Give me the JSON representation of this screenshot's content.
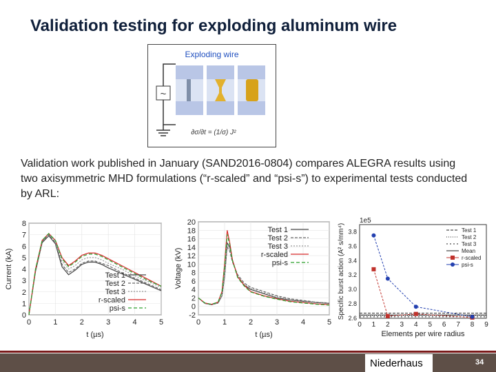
{
  "slide": {
    "title": "Validation testing for exploding aluminum wire",
    "schematic_label": "Exploding wire",
    "schematic_symbol": "~",
    "equation": "∂σ/∂t = (1/σ) J²",
    "body": "Validation work published in January (SAND2016-0804) compares ALEGRA results using two axisymmetric MHD formulations (“r-scaled” and “psi-s”) to experimental tests conducted by ARL:",
    "author": "Niederhaus",
    "page_number": "34"
  },
  "colors": {
    "test1": "#444444",
    "test2": "#666666",
    "test3": "#999999",
    "rscaled": "#d62728",
    "psis": "#2ca02c",
    "mean": "#222222",
    "rscaled_marker": "#c0312b",
    "psis_marker": "#2340b0",
    "footer": "#5e4f47",
    "title": "#0f1f3a",
    "schematic_text": "#1f4fbf"
  },
  "chart_data": [
    {
      "type": "line",
      "xlabel": "t (µs)",
      "ylabel": "Current (kA)",
      "xlim": [
        0,
        5
      ],
      "ylim": [
        0,
        8
      ],
      "xticks": [
        0,
        1,
        2,
        3,
        4,
        5
      ],
      "yticks": [
        0,
        1,
        2,
        3,
        4,
        5,
        6,
        7,
        8
      ],
      "grid": true,
      "legend_position": "bottom-right",
      "x": [
        0,
        0.25,
        0.5,
        0.75,
        1.0,
        1.25,
        1.5,
        1.75,
        2.0,
        2.25,
        2.5,
        2.75,
        3.0,
        3.5,
        4.0,
        4.5,
        5.0
      ],
      "series": [
        {
          "name": "Test 1",
          "values": [
            0,
            3.8,
            6.3,
            6.9,
            6.2,
            4.2,
            3.5,
            3.9,
            4.4,
            4.6,
            4.6,
            4.4,
            4.1,
            3.6,
            3.1,
            2.6,
            2.1
          ]
        },
        {
          "name": "Test 2",
          "values": [
            0,
            3.9,
            6.4,
            7.0,
            6.3,
            4.4,
            3.7,
            4.0,
            4.5,
            4.7,
            4.7,
            4.5,
            4.3,
            3.7,
            3.2,
            2.7,
            2.2
          ]
        },
        {
          "name": "Test 3",
          "values": [
            0,
            3.9,
            6.4,
            7.0,
            6.4,
            4.7,
            4.0,
            4.3,
            4.8,
            5.0,
            5.0,
            4.8,
            4.5,
            4.0,
            3.4,
            2.9,
            2.4
          ]
        },
        {
          "name": "r-scaled",
          "values": [
            0,
            4.0,
            6.5,
            7.1,
            6.5,
            5.0,
            4.3,
            4.7,
            5.2,
            5.4,
            5.4,
            5.2,
            4.9,
            4.3,
            3.7,
            3.1,
            2.5
          ]
        },
        {
          "name": "psi-s",
          "values": [
            0,
            4.0,
            6.5,
            7.1,
            6.5,
            4.9,
            4.2,
            4.6,
            5.1,
            5.3,
            5.3,
            5.1,
            4.8,
            4.2,
            3.6,
            3.0,
            2.5
          ]
        }
      ]
    },
    {
      "type": "line",
      "xlabel": "t (µs)",
      "ylabel": "Voltage (kV)",
      "xlim": [
        0,
        5
      ],
      "ylim": [
        -2,
        20
      ],
      "xticks": [
        0,
        1,
        2,
        3,
        4,
        5
      ],
      "yticks": [
        -2,
        0,
        2,
        4,
        6,
        8,
        10,
        12,
        14,
        16,
        18,
        20
      ],
      "grid": true,
      "legend_position": "top-right",
      "x": [
        0,
        0.25,
        0.5,
        0.75,
        0.9,
        1.0,
        1.1,
        1.2,
        1.3,
        1.5,
        1.75,
        2.0,
        2.5,
        3.0,
        3.5,
        4.0,
        4.5,
        5.0
      ],
      "series": [
        {
          "name": "Test 1",
          "values": [
            2,
            0.7,
            0.4,
            0.8,
            2.5,
            7,
            15,
            14,
            11,
            7,
            5,
            4,
            3,
            2,
            1.5,
            1.2,
            0.9,
            0.7
          ]
        },
        {
          "name": "Test 2",
          "values": [
            2,
            0.7,
            0.4,
            0.8,
            2.5,
            7,
            14,
            13,
            10.5,
            7.5,
            5.5,
            4.5,
            3.5,
            2.5,
            1.8,
            1.4,
            1.0,
            0.8
          ]
        },
        {
          "name": "Test 3",
          "values": [
            2,
            0.7,
            0.4,
            0.8,
            2.6,
            7.5,
            14.5,
            13.5,
            10.8,
            7.2,
            5.2,
            4.2,
            3.2,
            2.3,
            1.6,
            1.3,
            1.0,
            0.8
          ]
        },
        {
          "name": "r-scaled",
          "values": [
            2,
            0.8,
            0.5,
            1.0,
            3.5,
            10,
            18,
            15,
            11,
            7,
            5,
            3.5,
            2.5,
            1.8,
            1.2,
            0.9,
            0.6,
            0.4
          ]
        },
        {
          "name": "psi-s",
          "values": [
            2,
            0.8,
            0.5,
            1.0,
            3.4,
            9.5,
            17,
            14.5,
            10.8,
            6.8,
            4.8,
            3.4,
            2.4,
            1.7,
            1.1,
            0.8,
            0.5,
            0.3
          ]
        }
      ]
    },
    {
      "type": "line",
      "xlabel": "Elements per wire radius",
      "ylabel": "Specific burst action (A² s/mm⁴)",
      "yscale_label": "1e5",
      "xlim": [
        0,
        9
      ],
      "ylim": [
        2.6,
        3.9
      ],
      "xticks": [
        0,
        1,
        2,
        3,
        4,
        5,
        6,
        7,
        8,
        9
      ],
      "yticks": [
        2.6,
        2.8,
        3.0,
        3.2,
        3.4,
        3.6,
        3.8
      ],
      "legend_position": "top-right",
      "reference_lines": [
        {
          "name": "Test 1",
          "value": 2.67
        },
        {
          "name": "Test 2",
          "value": 2.64
        },
        {
          "name": "Test 3",
          "value": 2.62
        },
        {
          "name": "Mean",
          "value": 2.645
        }
      ],
      "series": [
        {
          "name": "r-scaled",
          "x": [
            1,
            2,
            4,
            8
          ],
          "values": [
            3.28,
            2.63,
            2.66,
            2.61
          ]
        },
        {
          "name": "psi-s",
          "x": [
            1,
            2,
            4,
            8
          ],
          "values": [
            3.75,
            3.15,
            2.76,
            2.62
          ]
        }
      ]
    }
  ]
}
